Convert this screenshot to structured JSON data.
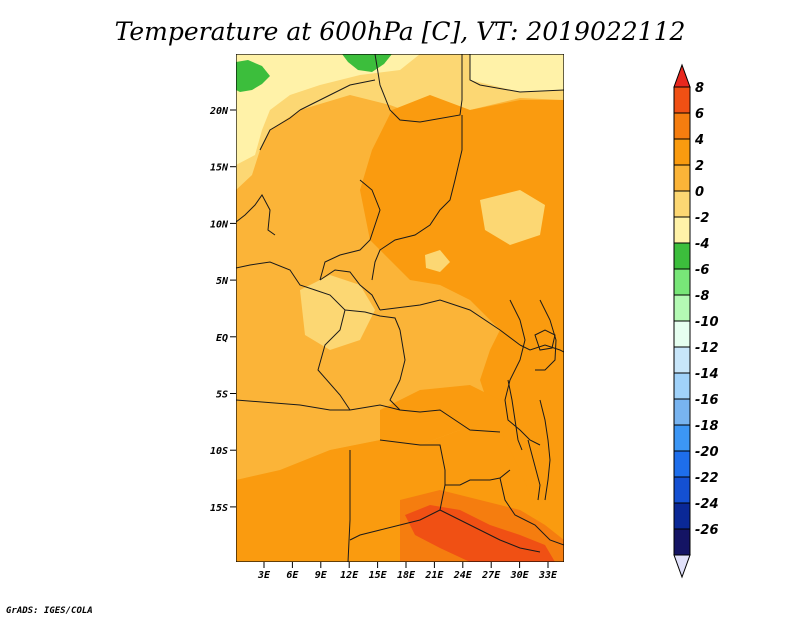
{
  "title": "Temperature at 600hPa [C], VT: 2019022112",
  "credit": "GrADS: IGES/COLA",
  "map": {
    "lat_labels": [
      "20N",
      "15N",
      "10N",
      "5N",
      "EQ",
      "5S",
      "10S",
      "15S"
    ],
    "lon_labels": [
      "3E",
      "6E",
      "9E",
      "12E",
      "15E",
      "18E",
      "21E",
      "24E",
      "27E",
      "30E",
      "33E"
    ]
  },
  "colorbar": {
    "labels": [
      "8",
      "6",
      "4",
      "2",
      "0",
      "-2",
      "-4",
      "-6",
      "-8",
      "-10",
      "-12",
      "-14",
      "-16",
      "-18",
      "-20",
      "-22",
      "-24",
      "-26"
    ],
    "colors": [
      "#e8281e",
      "#f05014",
      "#f57d0f",
      "#fa9b0f",
      "#fbb438",
      "#fcd773",
      "#fff2a8",
      "#3cbe3c",
      "#78e678",
      "#b4fab4",
      "#e6fff0",
      "#c8e6fa",
      "#a0d2fa",
      "#78b4f0",
      "#3c96f5",
      "#1e6eeb",
      "#1450d2",
      "#0a2896",
      "#141464",
      "#e1e1fa"
    ]
  },
  "fields": {
    "colors": {
      "lightest": "#fff2a8",
      "light": "#fcd773",
      "medium": "#fbb438",
      "warm": "#fa9b0f",
      "hot": "#f57d0f",
      "hottest": "#f05014",
      "green": "#3cbe3c"
    }
  }
}
